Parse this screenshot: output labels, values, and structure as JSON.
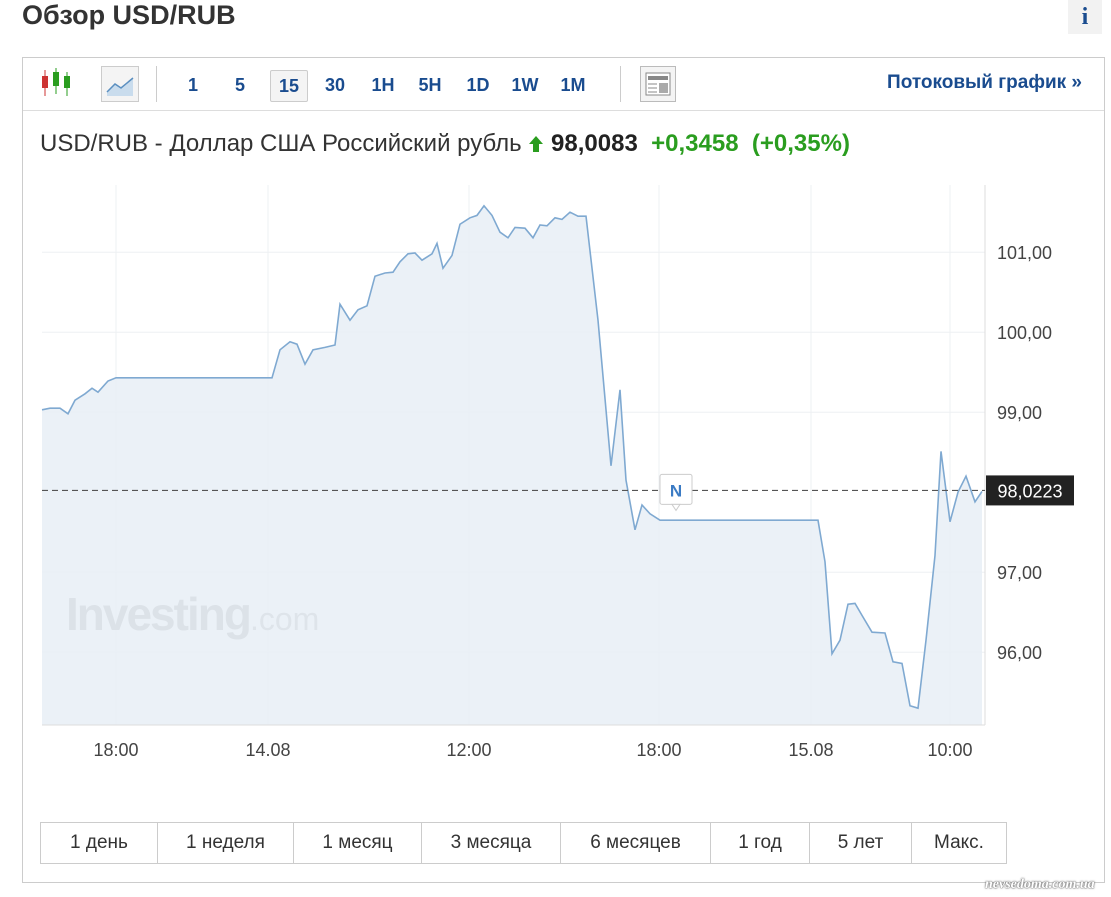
{
  "header": {
    "title": "Обзор USD/RUB",
    "info": "i"
  },
  "toolbar": {
    "intervals": [
      "1",
      "5",
      "15",
      "30",
      "1H",
      "5H",
      "1D",
      "1W",
      "1M"
    ],
    "active_interval": "15",
    "stream_link": "Потоковый график",
    "stream_arrow": "»"
  },
  "quote": {
    "name": "USD/RUB - Доллар США Российский рубль",
    "price": "98,0083",
    "change": "+0,3458",
    "change_percent": "(+0,35%)"
  },
  "chart_data": {
    "type": "area",
    "color": "#7fa9d1",
    "fill": "#e8eff6",
    "grid": true,
    "x": [
      0,
      0.8,
      1.8,
      2.6,
      3.3,
      4.3,
      5,
      5.6,
      6.6,
      7.4,
      23,
      23.8,
      24.8,
      25.5,
      26.3,
      27.1,
      28.3,
      29.3,
      29.8,
      30.8,
      31.6,
      32.5,
      33.3,
      34.3,
      35.1,
      35.8,
      36.6,
      37.3,
      38,
      39,
      39.5,
      40.1,
      41,
      41.8,
      42.8,
      43.5,
      44.2,
      45,
      45.8,
      46.6,
      47.3,
      48.3,
      49.1,
      49.8,
      50.5,
      51.3,
      52,
      52.8,
      53.6,
      54.4,
      55.6,
      56.9,
      57.8,
      58.4,
      59.3,
      60,
      60.8,
      61.8,
      77.6,
      78.3,
      79,
      79.8,
      80.6,
      81.3,
      82,
      83,
      84.3,
      85.1,
      86,
      86.8,
      87.6,
      88.4,
      89.3,
      89.9,
      90.8,
      91.6,
      92.4,
      93.3,
      94
    ],
    "values": [
      99.03,
      99.05,
      99.05,
      98.98,
      99.15,
      99.23,
      99.3,
      99.25,
      99.39,
      99.43,
      99.43,
      99.78,
      99.88,
      99.85,
      99.6,
      99.78,
      99.81,
      99.84,
      100.35,
      100.15,
      100.28,
      100.33,
      100.7,
      100.74,
      100.75,
      100.88,
      100.98,
      100.99,
      100.9,
      100.98,
      101.11,
      100.8,
      100.96,
      101.35,
      101.43,
      101.46,
      101.58,
      101.46,
      101.25,
      101.18,
      101.31,
      101.3,
      101.18,
      101.34,
      101.33,
      101.43,
      101.41,
      101.5,
      101.45,
      101.45,
      100.15,
      98.33,
      99.28,
      98.15,
      97.53,
      97.84,
      97.73,
      97.65,
      97.65,
      97.13,
      95.98,
      96.15,
      96.6,
      96.61,
      96.46,
      96.25,
      96.24,
      95.88,
      95.86,
      95.33,
      95.3,
      96.15,
      97.21,
      98.51,
      97.63,
      98.0,
      98.2,
      97.88,
      98.01
    ],
    "xlim": [
      0,
      94
    ],
    "ylim": [
      95.09,
      101.84
    ],
    "xticks": [
      {
        "value": 7.4,
        "label": "18:00"
      },
      {
        "value": 22.6,
        "label": "14.08"
      },
      {
        "value": 42.7,
        "label": "12:00"
      },
      {
        "value": 61.7,
        "label": "18:00"
      },
      {
        "value": 76.9,
        "label": "15.08"
      },
      {
        "value": 90.8,
        "label": "10:00"
      }
    ],
    "yticks": [
      {
        "value": 96,
        "label": "96,00"
      },
      {
        "value": 97,
        "label": "97,00"
      },
      {
        "value": 99,
        "label": "99,00"
      },
      {
        "value": 100,
        "label": "100,00"
      },
      {
        "value": 101,
        "label": "101,00"
      }
    ],
    "last_value": {
      "value": 98.0223,
      "label": "98,0223"
    },
    "annotation": "N",
    "watermark": {
      "brand": "Investing",
      "suffix": ".com"
    }
  },
  "ranges": [
    "1 день",
    "1 неделя",
    "1 месяц",
    "3 месяца",
    "6 месяцев",
    "1 год",
    "5 лет",
    "Макс."
  ],
  "site_watermark": "nevsedoma.com.ua"
}
